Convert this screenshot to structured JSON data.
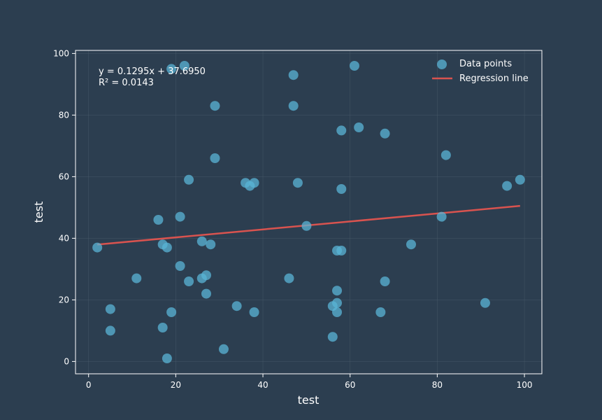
{
  "colors": {
    "background": "#2c3e50",
    "axes": "#ffffff",
    "grid": "#4a5b6b",
    "points": "#5ab4d6",
    "regression": "#d9534f",
    "text": "#ffffff"
  },
  "chart_data": {
    "type": "scatter",
    "xlabel": "test",
    "ylabel": "test",
    "xlim": [
      -3,
      104
    ],
    "ylim": [
      -4,
      101
    ],
    "xticks": [
      0,
      20,
      40,
      60,
      80,
      100
    ],
    "yticks": [
      0,
      20,
      40,
      60,
      80,
      100
    ],
    "grid": true,
    "legend": {
      "placement": "top-right",
      "points_label": "Data points",
      "line_label": "Regression line"
    },
    "annotation": {
      "equation": "y = 0.1295x + 37.6950",
      "r_squared": "R² = 0.0143"
    },
    "regression": {
      "slope": 0.1295,
      "intercept": 37.695,
      "x_range": [
        2,
        99
      ]
    },
    "points": [
      {
        "x": 2,
        "y": 37
      },
      {
        "x": 5,
        "y": 17
      },
      {
        "x": 5,
        "y": 10
      },
      {
        "x": 11,
        "y": 27
      },
      {
        "x": 16,
        "y": 46
      },
      {
        "x": 17,
        "y": 38
      },
      {
        "x": 17,
        "y": 11
      },
      {
        "x": 18,
        "y": 37
      },
      {
        "x": 18,
        "y": 1
      },
      {
        "x": 19,
        "y": 16
      },
      {
        "x": 19,
        "y": 95
      },
      {
        "x": 21,
        "y": 47
      },
      {
        "x": 21,
        "y": 31
      },
      {
        "x": 22,
        "y": 96
      },
      {
        "x": 23,
        "y": 59
      },
      {
        "x": 23,
        "y": 26
      },
      {
        "x": 26,
        "y": 39
      },
      {
        "x": 26,
        "y": 27
      },
      {
        "x": 27,
        "y": 28
      },
      {
        "x": 27,
        "y": 22
      },
      {
        "x": 28,
        "y": 38
      },
      {
        "x": 29,
        "y": 83
      },
      {
        "x": 29,
        "y": 66
      },
      {
        "x": 31,
        "y": 4
      },
      {
        "x": 34,
        "y": 18
      },
      {
        "x": 36,
        "y": 58
      },
      {
        "x": 37,
        "y": 57
      },
      {
        "x": 38,
        "y": 58
      },
      {
        "x": 38,
        "y": 16
      },
      {
        "x": 46,
        "y": 27
      },
      {
        "x": 47,
        "y": 93
      },
      {
        "x": 47,
        "y": 83
      },
      {
        "x": 48,
        "y": 58
      },
      {
        "x": 50,
        "y": 44
      },
      {
        "x": 56,
        "y": 18
      },
      {
        "x": 56,
        "y": 8
      },
      {
        "x": 57,
        "y": 36
      },
      {
        "x": 57,
        "y": 23
      },
      {
        "x": 57,
        "y": 19
      },
      {
        "x": 57,
        "y": 16
      },
      {
        "x": 58,
        "y": 75
      },
      {
        "x": 58,
        "y": 56
      },
      {
        "x": 58,
        "y": 36
      },
      {
        "x": 61,
        "y": 96
      },
      {
        "x": 62,
        "y": 76
      },
      {
        "x": 67,
        "y": 16
      },
      {
        "x": 68,
        "y": 74
      },
      {
        "x": 68,
        "y": 26
      },
      {
        "x": 74,
        "y": 38
      },
      {
        "x": 81,
        "y": 47
      },
      {
        "x": 82,
        "y": 67
      },
      {
        "x": 91,
        "y": 19
      },
      {
        "x": 96,
        "y": 57
      },
      {
        "x": 99,
        "y": 59
      }
    ]
  }
}
